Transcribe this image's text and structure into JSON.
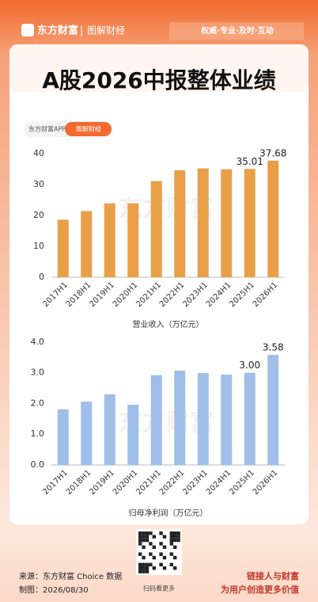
{
  "header": {
    "logo": "东方财富",
    "channel": "图解财经",
    "slogan": "权威·专业·及时·互动"
  },
  "title": "A股2026中报整体业绩",
  "tabs": [
    "东方财富APP",
    "图解财经"
  ],
  "watermark": "东方财富",
  "chart_data": [
    {
      "type": "bar",
      "x_label": "营业收入（万亿元）",
      "categories": [
        "2017H1",
        "2018H1",
        "2019H1",
        "2020H1",
        "2021H1",
        "2022H1",
        "2023H1",
        "2024H1",
        "2025H1",
        "2026H1"
      ],
      "values": [
        18.6,
        21.4,
        23.9,
        23.9,
        31.1,
        34.6,
        35.2,
        34.9,
        35.01,
        37.68
      ],
      "value_labels": [
        null,
        null,
        null,
        null,
        null,
        null,
        null,
        null,
        "35.01",
        "37.68"
      ],
      "color": "#e99f48",
      "ylim": [
        0,
        42
      ],
      "yticks": [
        0,
        10,
        20,
        30,
        40
      ],
      "grid": false
    },
    {
      "type": "bar",
      "x_label": "归母净利润（万亿元）",
      "categories": [
        "2017H1",
        "2018H1",
        "2019H1",
        "2020H1",
        "2021H1",
        "2022H1",
        "2023H1",
        "2024H1",
        "2025H1",
        "2026H1"
      ],
      "values": [
        1.81,
        2.06,
        2.3,
        1.96,
        2.92,
        3.07,
        2.99,
        2.94,
        3.0,
        3.58
      ],
      "value_labels": [
        null,
        null,
        null,
        null,
        null,
        null,
        null,
        null,
        "3.00",
        "3.58"
      ],
      "color": "#9fbfe8",
      "ylim": [
        0,
        4.2
      ],
      "yticks": [
        {
          "value": 0,
          "label": "0.0"
        },
        {
          "value": 1,
          "label": "1.0"
        },
        {
          "value": 2,
          "label": "2.0"
        },
        {
          "value": 3,
          "label": "3.0"
        },
        {
          "value": 4,
          "label": "4.0"
        }
      ],
      "grid": false
    }
  ],
  "footer": {
    "source": "来源：东方财富 Choice 数据",
    "date": "制图：2026/08/30",
    "qr_caption": "扫码看更多",
    "motto1": "链接人与财富",
    "motto2": "为用户创造更多价值"
  }
}
